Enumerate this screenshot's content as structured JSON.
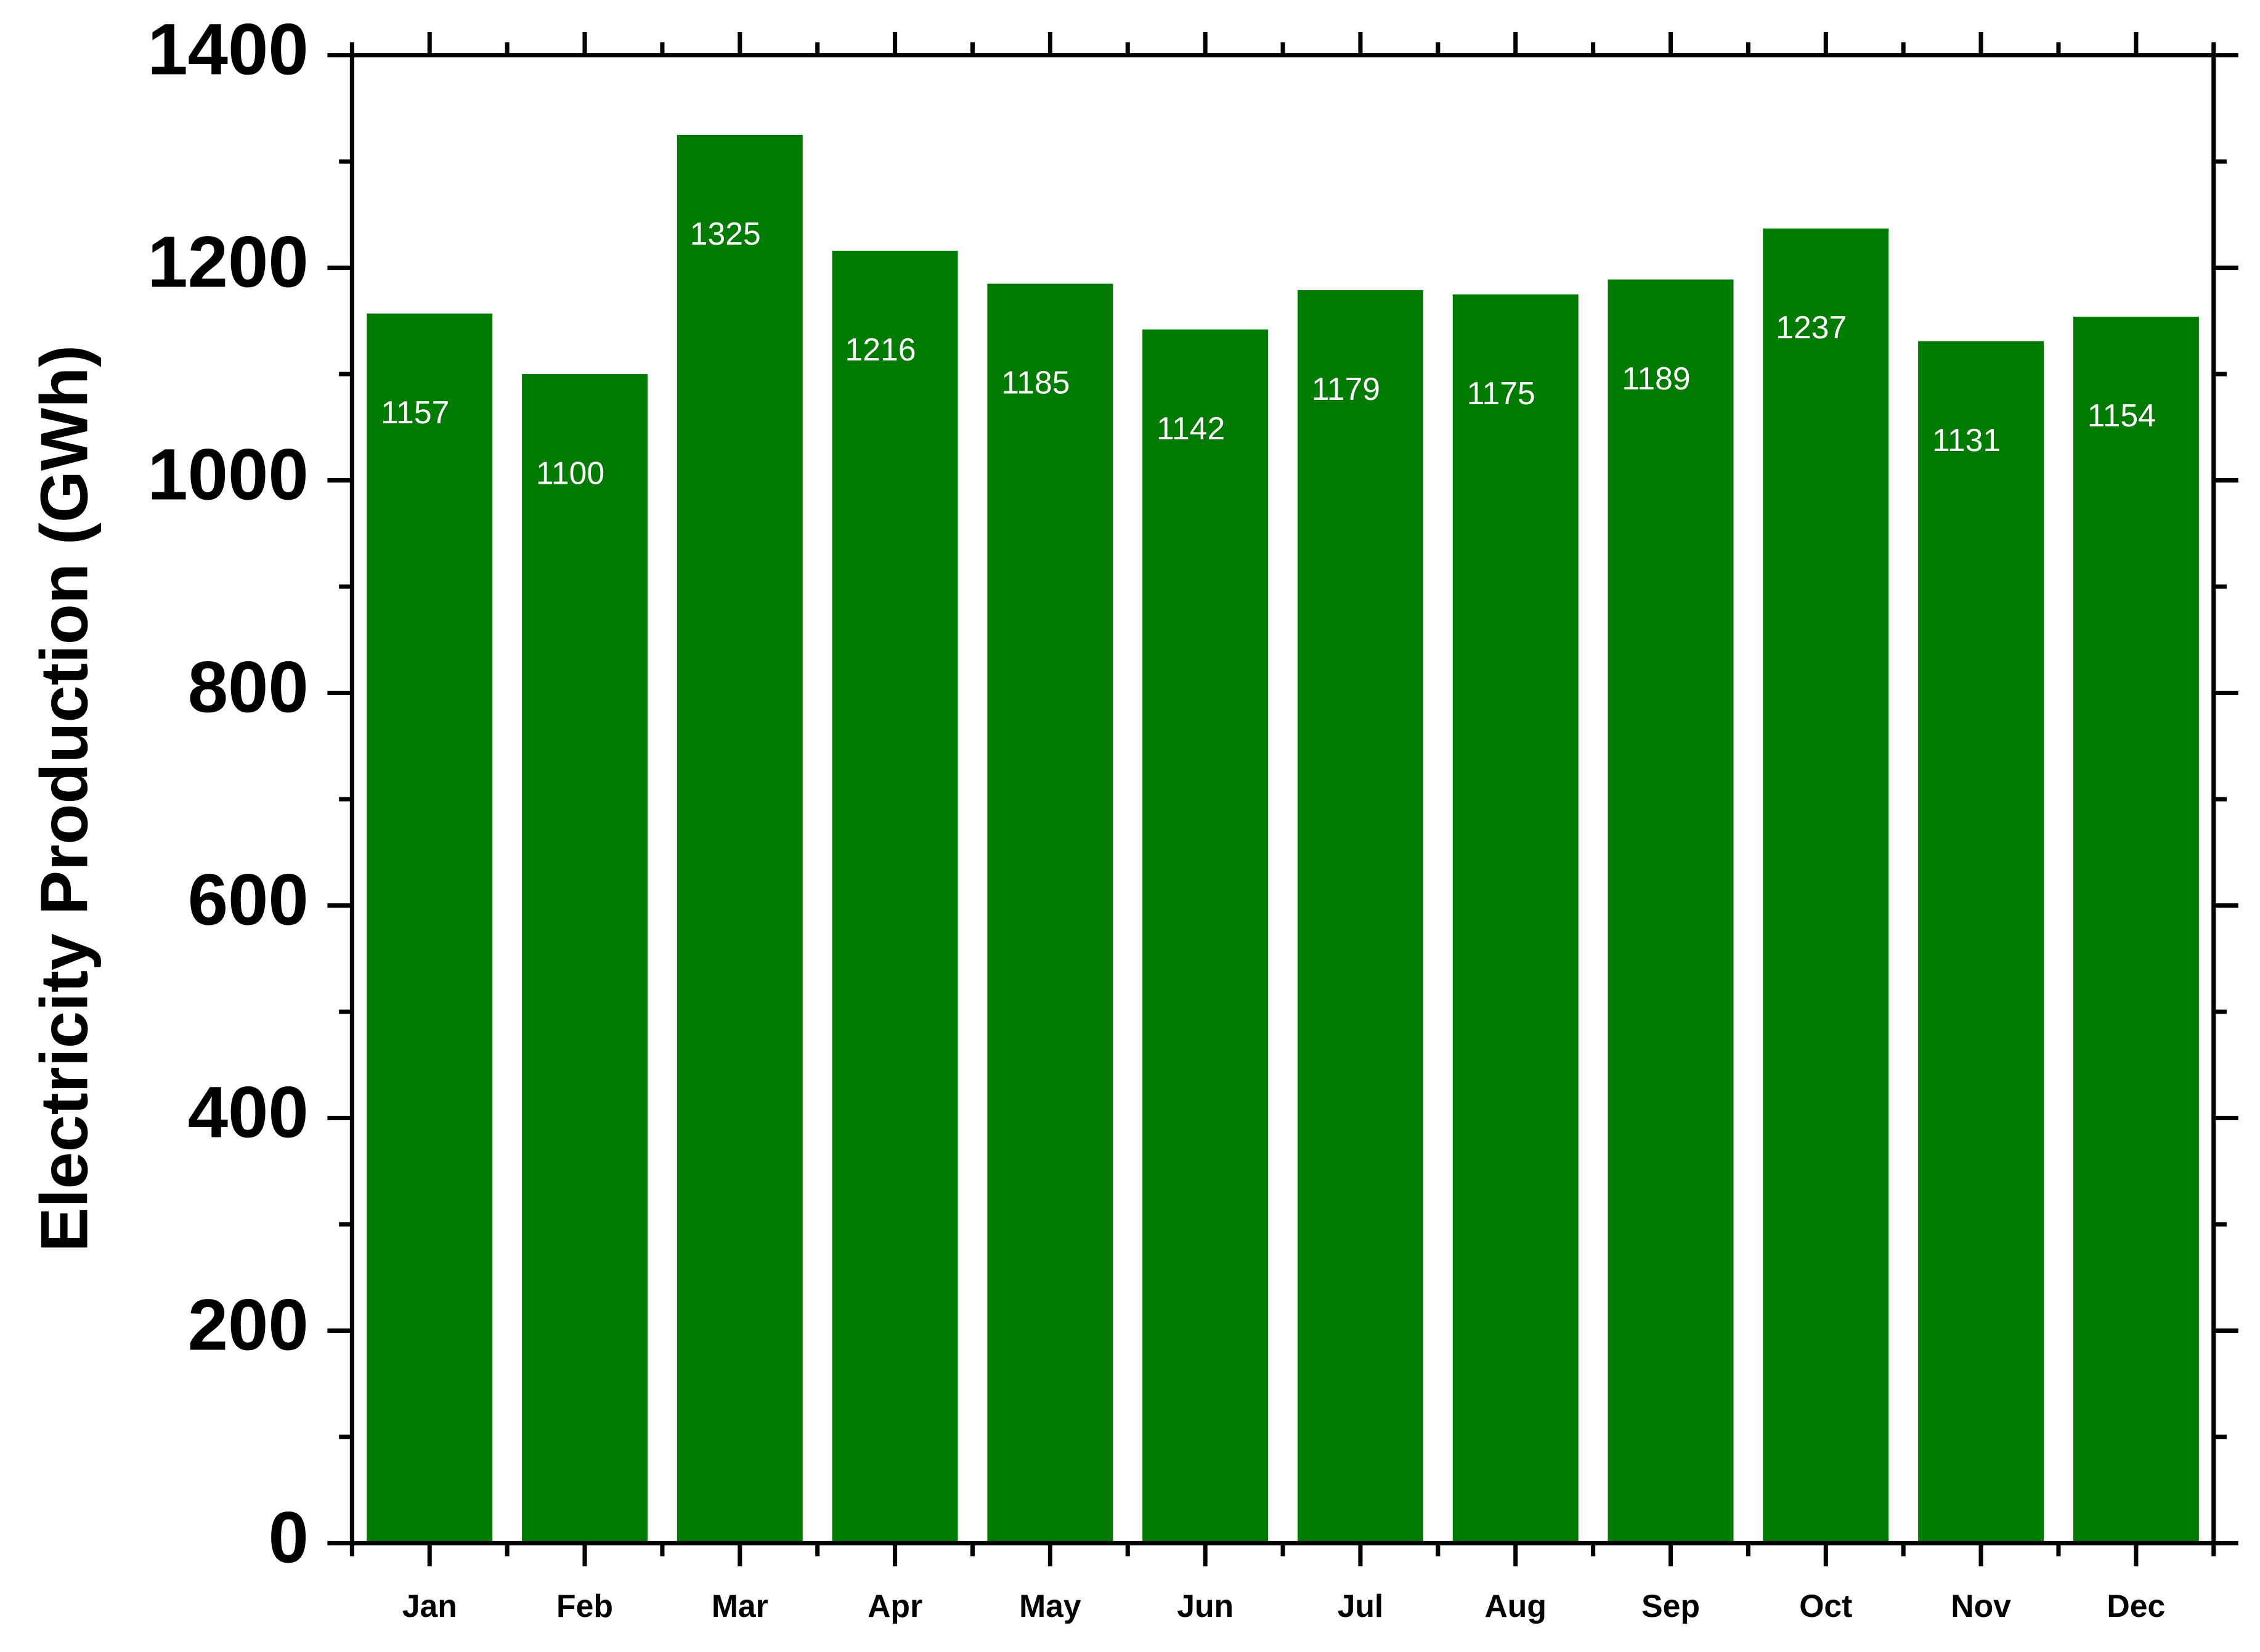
{
  "chart_data": {
    "type": "bar",
    "y_label": "Electricity Production (GWh)",
    "categories": [
      "Jan",
      "Feb",
      "Mar",
      "Apr",
      "May",
      "Jun",
      "Jul",
      "Aug",
      "Sep",
      "Oct",
      "Nov",
      "Dec"
    ],
    "values": [
      1157,
      1100,
      1325,
      1216,
      1185,
      1142,
      1179,
      1175,
      1189,
      1237,
      1131,
      1154
    ],
    "color": "#007a00",
    "ylim": [
      0,
      1400
    ],
    "yticks": [
      0,
      200,
      400,
      600,
      800,
      1000,
      1200,
      1400
    ],
    "yminorticks": [
      100,
      300,
      500,
      700,
      900,
      1100,
      1300
    ]
  }
}
